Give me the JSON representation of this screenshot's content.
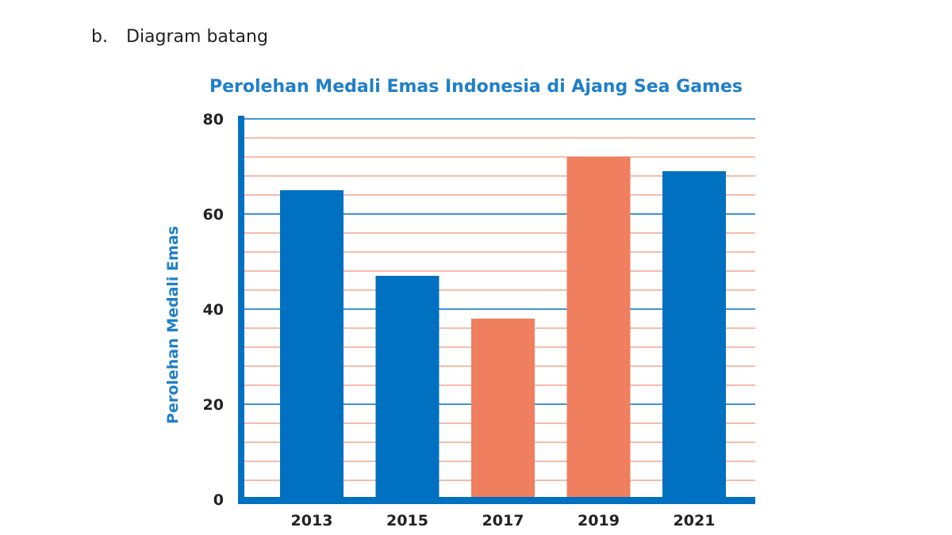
{
  "section": {
    "marker": "b.",
    "label": "Diagram batang"
  },
  "chart_data": {
    "type": "bar",
    "title": "Perolehan Medali Emas Indonesia di Ajang Sea Games",
    "xlabel": "",
    "ylabel": "Perolehan Medali Emas",
    "categories": [
      "2013",
      "2015",
      "2017",
      "2019",
      "2021"
    ],
    "values": [
      65,
      47,
      38,
      72,
      69
    ],
    "bar_colors": [
      "#0070c0",
      "#0070c0",
      "#f07f5f",
      "#f07f5f",
      "#0070c0"
    ],
    "ylim": [
      0,
      80
    ],
    "yticks": [
      0,
      20,
      40,
      60,
      80
    ],
    "minor_grid_step": 4,
    "grid": true,
    "colors": {
      "axis": "#0070c0",
      "major_grid": "#0070c0",
      "minor_grid": "#f4a58f",
      "title": "#1f7fc8"
    }
  }
}
